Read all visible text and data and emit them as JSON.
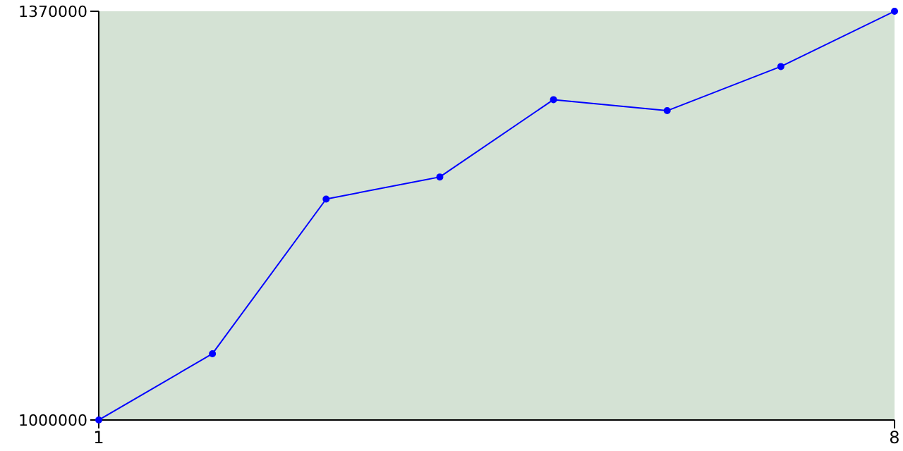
{
  "chart_data": {
    "type": "line",
    "x": [
      1,
      2,
      3,
      4,
      5,
      6,
      7,
      8
    ],
    "series": [
      {
        "color": "#0000ff",
        "values": [
          1000000,
          1060000,
          1200000,
          1220000,
          1290000,
          1280000,
          1320000,
          1370000
        ]
      }
    ],
    "xlim": [
      1,
      8
    ],
    "xticks": [
      1,
      8
    ],
    "ylim": [
      1000000,
      1370000
    ],
    "yticks": [
      1000000,
      1370000
    ],
    "marker": "circle",
    "grid": false,
    "legend": false
  }
}
